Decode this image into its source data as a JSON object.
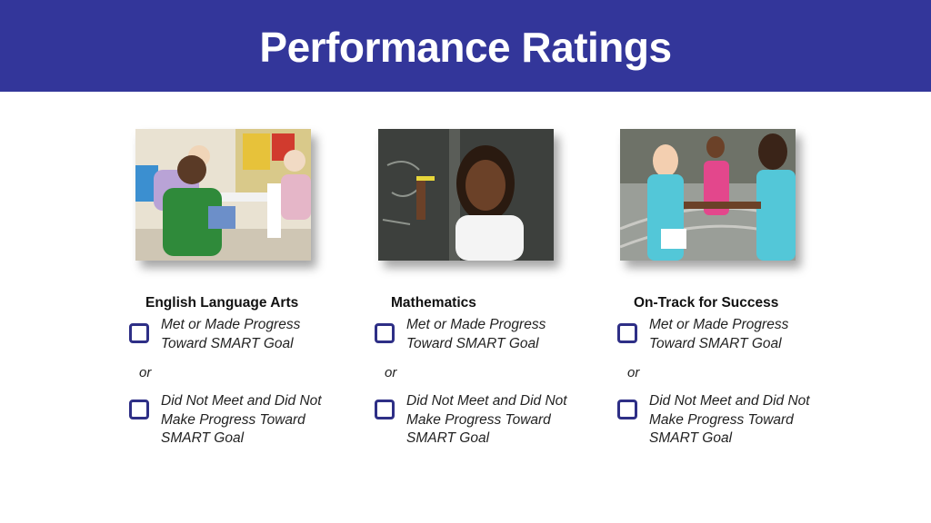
{
  "header": {
    "title": "Performance Ratings",
    "bg_color": "#33369a"
  },
  "columns": [
    {
      "subject": "English Language Arts",
      "photo_icon": "photo-children-reading",
      "option_met": [
        "Met or Made Progress",
        "Toward SMART Goal"
      ],
      "or_label": "or",
      "option_not_met": [
        "Did Not Meet and Did Not",
        "Make Progress Toward",
        "SMART Goal"
      ]
    },
    {
      "subject": "Mathematics",
      "photo_icon": "photo-girl-at-chalkboard",
      "option_met": [
        "Met or Made Progress",
        "Toward SMART Goal"
      ],
      "or_label": "or",
      "option_not_met": [
        "Did Not Meet and Did Not",
        "Make Progress Toward",
        "SMART Goal"
      ]
    },
    {
      "subject": "On-Track for Success",
      "photo_icon": "photo-relay-runners",
      "option_met": [
        "Met or Made Progress",
        "Toward SMART Goal"
      ],
      "or_label": "or",
      "option_not_met": [
        "Did Not Meet and Did Not",
        "Make Progress Toward",
        "SMART Goal"
      ]
    }
  ],
  "checkbox_color": "#2e2f86"
}
